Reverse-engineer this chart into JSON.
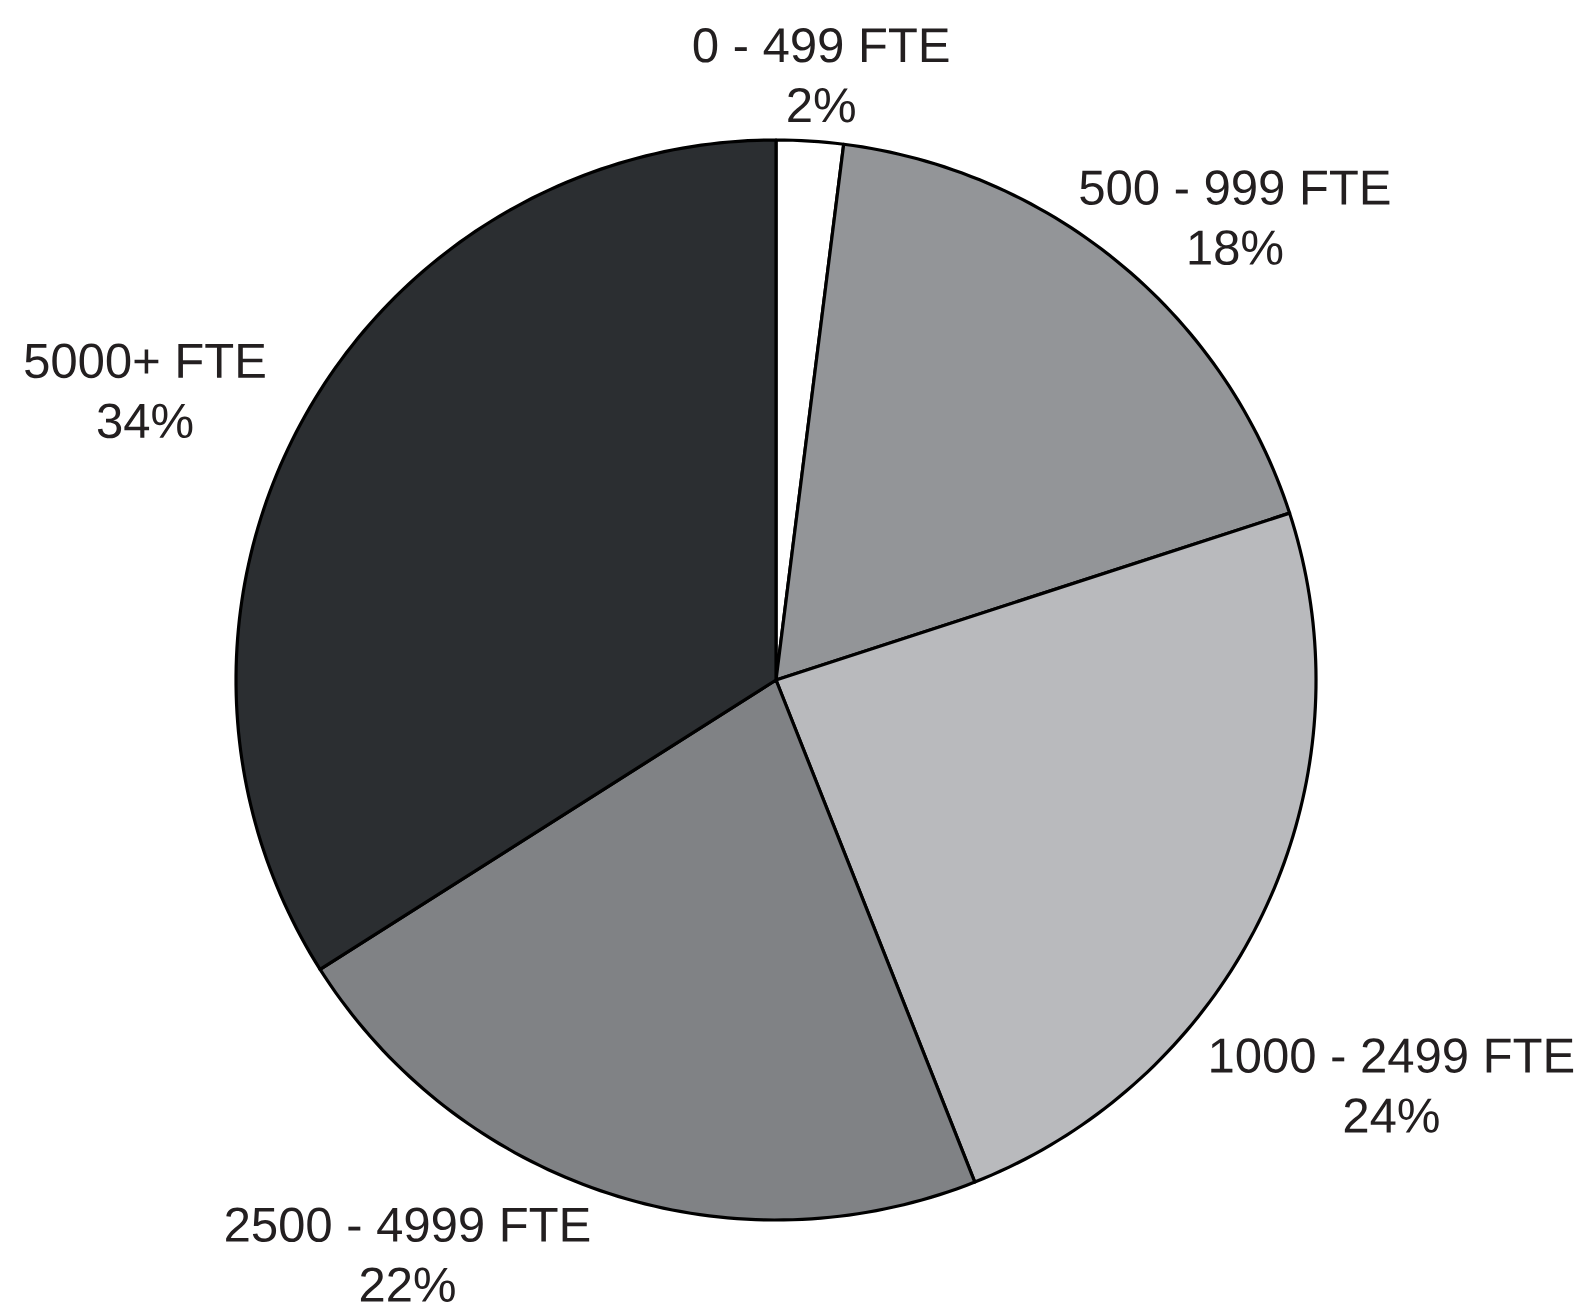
{
  "chart_data": {
    "type": "pie",
    "categories": [
      "0 - 499 FTE",
      "500 - 999 FTE",
      "1000 - 2499 FTE",
      "2500 - 4999 FTE",
      "5000+ FTE"
    ],
    "values": [
      2,
      18,
      24,
      22,
      34
    ],
    "colors": [
      "#ffffff",
      "#939598",
      "#b9babd",
      "#808285",
      "#2b2e31"
    ],
    "value_labels": [
      "2%",
      "18%",
      "24%",
      "22%",
      "34%"
    ]
  }
}
